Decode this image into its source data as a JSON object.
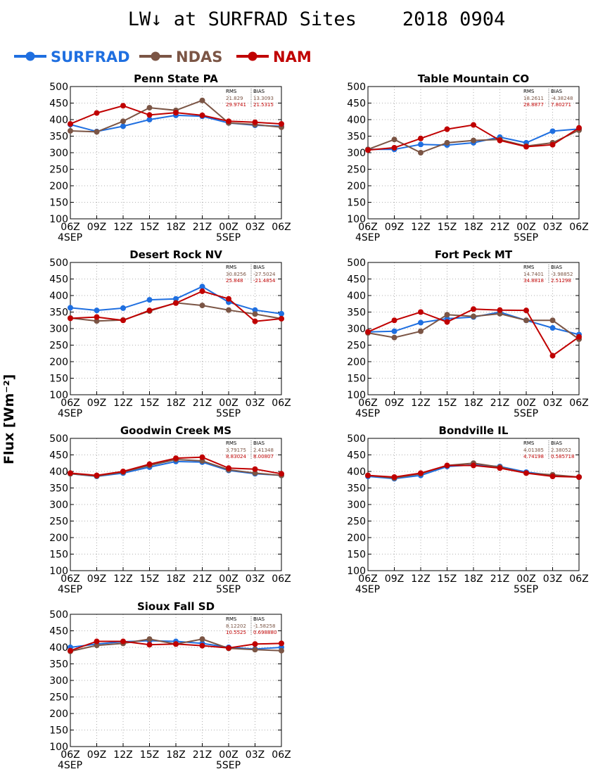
{
  "title": "LW↓ at SURFRAD Sites    2018 0904",
  "ylabel": "Flux [Wm⁻²]",
  "legend": [
    {
      "name": "SURFRAD",
      "color": "#1f6fe0"
    },
    {
      "name": "NDAS",
      "color": "#7b5545"
    },
    {
      "name": "NAM",
      "color": "#c00000"
    }
  ],
  "chart_data": [
    {
      "type": "line",
      "title": "Penn State PA",
      "categories": [
        "06Z",
        "09Z",
        "12Z",
        "15Z",
        "18Z",
        "21Z",
        "00Z",
        "03Z",
        "06Z"
      ],
      "date_labels": [
        "4SEP",
        "5SEP"
      ],
      "ylim": [
        100,
        500
      ],
      "yticks": [
        100,
        150,
        200,
        250,
        300,
        350,
        400,
        450,
        500
      ],
      "grid": true,
      "stats": {
        "headers": [
          "RMS",
          "BIAS"
        ],
        "rows": [
          [
            "21.829",
            "13.3093"
          ],
          [
            "29.9741",
            "21.5315"
          ]
        ]
      },
      "series": [
        {
          "name": "SURFRAD",
          "values": [
            385,
            364,
            380,
            400,
            413,
            410,
            390,
            383,
            380
          ]
        },
        {
          "name": "NDAS",
          "values": [
            366,
            363,
            395,
            436,
            428,
            458,
            390,
            385,
            377
          ]
        },
        {
          "name": "NAM",
          "values": [
            387,
            420,
            442,
            414,
            421,
            413,
            395,
            392,
            387
          ]
        }
      ]
    },
    {
      "type": "line",
      "title": "Table Mountain CO",
      "categories": [
        "06Z",
        "09Z",
        "12Z",
        "15Z",
        "18Z",
        "21Z",
        "00Z",
        "03Z",
        "06Z"
      ],
      "date_labels": [
        "4SEP",
        "5SEP"
      ],
      "ylim": [
        100,
        500
      ],
      "yticks": [
        100,
        150,
        200,
        250,
        300,
        350,
        400,
        450,
        500
      ],
      "grid": true,
      "stats": {
        "headers": [
          "RMS",
          "BIAS"
        ],
        "rows": [
          [
            "18.2611",
            "-4.38248"
          ],
          [
            "28.8877",
            "7.80271"
          ]
        ]
      },
      "series": [
        {
          "name": "SURFRAD",
          "values": [
            310,
            310,
            325,
            323,
            330,
            347,
            330,
            365,
            372
          ]
        },
        {
          "name": "NDAS",
          "values": [
            310,
            340,
            300,
            330,
            337,
            340,
            320,
            330,
            368
          ]
        },
        {
          "name": "NAM",
          "values": [
            308,
            315,
            343,
            371,
            384,
            337,
            318,
            324,
            375
          ]
        }
      ]
    },
    {
      "type": "line",
      "title": "Desert Rock NV",
      "categories": [
        "06Z",
        "09Z",
        "12Z",
        "15Z",
        "18Z",
        "21Z",
        "00Z",
        "03Z",
        "06Z"
      ],
      "date_labels": [
        "4SEP",
        "5SEP"
      ],
      "ylim": [
        100,
        500
      ],
      "yticks": [
        100,
        150,
        200,
        250,
        300,
        350,
        400,
        450,
        500
      ],
      "grid": true,
      "stats": {
        "headers": [
          "RMS",
          "BIAS"
        ],
        "rows": [
          [
            "30.8256",
            "-27.5024"
          ],
          [
            "25.848",
            "-21.4854"
          ]
        ]
      },
      "series": [
        {
          "name": "SURFRAD",
          "values": [
            363,
            355,
            362,
            387,
            390,
            427,
            380,
            356,
            345
          ]
        },
        {
          "name": "NDAS",
          "values": [
            332,
            323,
            326,
            353,
            378,
            370,
            356,
            344,
            330
          ]
        },
        {
          "name": "NAM",
          "values": [
            331,
            335,
            325,
            355,
            377,
            413,
            390,
            322,
            330
          ]
        }
      ]
    },
    {
      "type": "line",
      "title": "Fort Peck MT",
      "categories": [
        "06Z",
        "09Z",
        "12Z",
        "15Z",
        "18Z",
        "21Z",
        "00Z",
        "03Z",
        "06Z"
      ],
      "date_labels": [
        "4SEP",
        "5SEP"
      ],
      "ylim": [
        100,
        500
      ],
      "yticks": [
        100,
        150,
        200,
        250,
        300,
        350,
        400,
        450,
        500
      ],
      "grid": true,
      "stats": {
        "headers": [
          "RMS",
          "BIAS"
        ],
        "rows": [
          [
            "14.7401",
            "-3.98852"
          ],
          [
            "34.8818",
            "2.51298"
          ]
        ]
      },
      "series": [
        {
          "name": "SURFRAD",
          "values": [
            290,
            292,
            318,
            330,
            335,
            350,
            325,
            302,
            282
          ]
        },
        {
          "name": "NDAS",
          "values": [
            287,
            273,
            292,
            342,
            337,
            345,
            325,
            325,
            268
          ]
        },
        {
          "name": "NAM",
          "values": [
            290,
            325,
            350,
            320,
            359,
            356,
            355,
            218,
            275
          ]
        }
      ]
    },
    {
      "type": "line",
      "title": "Goodwin Creek MS",
      "categories": [
        "06Z",
        "09Z",
        "12Z",
        "15Z",
        "18Z",
        "21Z",
        "00Z",
        "03Z",
        "06Z"
      ],
      "date_labels": [
        "4SEP",
        "5SEP"
      ],
      "ylim": [
        100,
        500
      ],
      "yticks": [
        100,
        150,
        200,
        250,
        300,
        350,
        400,
        450,
        500
      ],
      "grid": true,
      "stats": {
        "headers": [
          "RMS",
          "BIAS"
        ],
        "rows": [
          [
            "3.79175",
            "2.41348"
          ],
          [
            "8.83024",
            "8.00807"
          ]
        ]
      },
      "series": [
        {
          "name": "SURFRAD",
          "values": [
            393,
            385,
            395,
            413,
            430,
            428,
            403,
            393,
            388
          ]
        },
        {
          "name": "NDAS",
          "values": [
            393,
            386,
            398,
            418,
            436,
            432,
            405,
            395,
            388
          ]
        },
        {
          "name": "NAM",
          "values": [
            395,
            388,
            400,
            422,
            440,
            443,
            410,
            407,
            393
          ]
        }
      ]
    },
    {
      "type": "line",
      "title": "Bondville IL",
      "categories": [
        "06Z",
        "09Z",
        "12Z",
        "15Z",
        "18Z",
        "21Z",
        "00Z",
        "03Z",
        "06Z"
      ],
      "date_labels": [
        "4SEP",
        "5SEP"
      ],
      "ylim": [
        100,
        500
      ],
      "yticks": [
        100,
        150,
        200,
        250,
        300,
        350,
        400,
        450,
        500
      ],
      "grid": true,
      "stats": {
        "headers": [
          "RMS",
          "BIAS"
        ],
        "rows": [
          [
            "4.01385",
            "2.38052"
          ],
          [
            "4.74198",
            "0.585718"
          ]
        ]
      },
      "series": [
        {
          "name": "SURFRAD",
          "values": [
            385,
            378,
            388,
            415,
            420,
            415,
            398,
            388,
            383
          ]
        },
        {
          "name": "NDAS",
          "values": [
            388,
            380,
            393,
            418,
            425,
            413,
            395,
            390,
            383
          ]
        },
        {
          "name": "NAM",
          "values": [
            388,
            383,
            395,
            418,
            418,
            410,
            395,
            385,
            383
          ]
        }
      ]
    },
    {
      "type": "line",
      "title": "Sioux Fall SD",
      "categories": [
        "06Z",
        "09Z",
        "12Z",
        "15Z",
        "18Z",
        "21Z",
        "00Z",
        "03Z",
        "06Z"
      ],
      "date_labels": [
        "4SEP",
        "5SEP"
      ],
      "ylim": [
        100,
        500
      ],
      "yticks": [
        100,
        150,
        200,
        250,
        300,
        350,
        400,
        450,
        500
      ],
      "grid": true,
      "stats": {
        "headers": [
          "RMS",
          "BIAS"
        ],
        "rows": [
          [
            "8.12202",
            "-1.58258"
          ],
          [
            "10.5525",
            "0.698880"
          ]
        ]
      },
      "series": [
        {
          "name": "SURFRAD",
          "values": [
            400,
            410,
            417,
            420,
            418,
            412,
            400,
            395,
            400
          ]
        },
        {
          "name": "NDAS",
          "values": [
            388,
            406,
            412,
            425,
            410,
            425,
            397,
            393,
            390
          ]
        },
        {
          "name": "NAM",
          "values": [
            390,
            418,
            418,
            408,
            410,
            405,
            398,
            410,
            412
          ]
        }
      ]
    }
  ]
}
